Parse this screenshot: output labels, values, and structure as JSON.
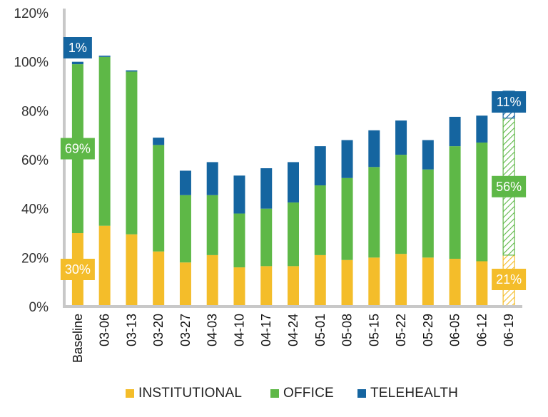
{
  "chart_data": {
    "type": "bar",
    "stacked": true,
    "title": "",
    "xlabel": "",
    "ylabel": "",
    "ylim": [
      0,
      120
    ],
    "yticks": [
      "0%",
      "20%",
      "40%",
      "60%",
      "80%",
      "100%",
      "120%"
    ],
    "ytick_values": [
      0,
      20,
      40,
      60,
      80,
      100,
      120
    ],
    "categories": [
      "Baseline",
      "03-06",
      "03-13",
      "03-20",
      "03-27",
      "04-03",
      "04-10",
      "04-17",
      "04-24",
      "05-01",
      "05-08",
      "05-15",
      "05-22",
      "05-29",
      "06-05",
      "06-12",
      "06-19"
    ],
    "series": [
      {
        "name": "INSTITUTIONAL",
        "color": "#F4BD2A",
        "values": [
          30,
          33,
          29.5,
          22.5,
          18,
          21,
          16,
          16.5,
          16.5,
          21,
          19,
          20,
          21.5,
          20,
          19.5,
          18.5,
          21
        ]
      },
      {
        "name": "OFFICE",
        "color": "#5EB847",
        "values": [
          69,
          69,
          66.5,
          43.5,
          27.5,
          24.5,
          22,
          23.5,
          26,
          28.5,
          33.5,
          37,
          40.5,
          36,
          46,
          48.5,
          56
        ]
      },
      {
        "name": "TELEHEALTH",
        "color": "#1565A0",
        "values": [
          1,
          0.5,
          0.5,
          3,
          10,
          13.5,
          15.5,
          16.5,
          16.5,
          16,
          15.5,
          15,
          14,
          12,
          12,
          11,
          11
        ]
      }
    ],
    "projected_category": "06-19",
    "annotations": [
      {
        "category": "Baseline",
        "series": "TELEHEALTH",
        "text": "1%"
      },
      {
        "category": "Baseline",
        "series": "OFFICE",
        "text": "69%"
      },
      {
        "category": "Baseline",
        "series": "INSTITUTIONAL",
        "text": "30%"
      },
      {
        "category": "06-19",
        "series": "TELEHEALTH",
        "text": "11%"
      },
      {
        "category": "06-19",
        "series": "OFFICE",
        "text": "56%"
      },
      {
        "category": "06-19",
        "series": "INSTITUTIONAL",
        "text": "21%"
      }
    ],
    "legend": [
      {
        "label": "INSTITUTIONAL",
        "color": "#F4BD2A"
      },
      {
        "label": "OFFICE",
        "color": "#5EB847"
      },
      {
        "label": "TELEHEALTH",
        "color": "#1565A0"
      }
    ],
    "legend_position": "bottom",
    "grid": false
  }
}
